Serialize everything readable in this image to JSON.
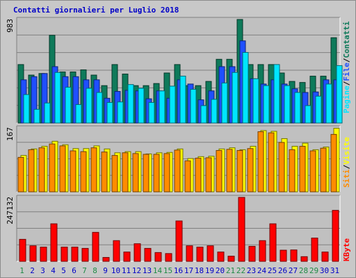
{
  "title": "Contatti giornalieri per Luglio 2018",
  "colors": {
    "background": "#c8c8c8",
    "panel": "#c0c0c0",
    "grid": "#808080",
    "pages": "#00e6ff",
    "files": "#1f4fff",
    "hits": "#0e7a5a",
    "sites": "#ff8c00",
    "visits": "#ffff00",
    "kbytes": "#ff0000",
    "title": "#0000c8",
    "weekend_label": "#1e8c46",
    "weekday_label": "#0000c8"
  },
  "chart_data": [
    {
      "type": "bar",
      "panel": "top",
      "ylabel_max": "983",
      "legend": {
        "pages": "Pagine",
        "sep1": "/",
        "files": "File",
        "sep2": "/",
        "hits": "Contatti"
      },
      "ylim": [
        0,
        983
      ],
      "categories": [
        "1",
        "2",
        "3",
        "4",
        "5",
        "6",
        "7",
        "8",
        "9",
        "10",
        "11",
        "12",
        "13",
        "14",
        "15",
        "16",
        "17",
        "18",
        "19",
        "20",
        "21",
        "22",
        "23",
        "24",
        "25",
        "26",
        "27",
        "28",
        "29",
        "30",
        "31"
      ],
      "weekend_days": [
        "1",
        "7",
        "8",
        "14",
        "15",
        "21",
        "22",
        "28",
        "29"
      ],
      "series": [
        {
          "name": "Contatti",
          "values": [
            555,
            455,
            470,
            833,
            485,
            485,
            505,
            455,
            355,
            555,
            465,
            355,
            355,
            375,
            475,
            555,
            355,
            355,
            395,
            605,
            605,
            983,
            555,
            555,
            555,
            475,
            395,
            385,
            445,
            445,
            810
          ]
        },
        {
          "name": "File",
          "values": [
            410,
            440,
            470,
            535,
            440,
            440,
            410,
            410,
            235,
            300,
            310,
            305,
            230,
            305,
            235,
            410,
            370,
            220,
            305,
            535,
            535,
            780,
            420,
            370,
            410,
            370,
            325,
            290,
            295,
            410,
            410
          ]
        },
        {
          "name": "Pagine",
          "values": [
            270,
            130,
            190,
            480,
            340,
            175,
            330,
            290,
            195,
            200,
            365,
            330,
            195,
            305,
            350,
            445,
            320,
            165,
            225,
            380,
            480,
            670,
            420,
            355,
            555,
            355,
            290,
            165,
            255,
            370,
            545
          ]
        }
      ]
    },
    {
      "type": "bar",
      "panel": "middle",
      "ylabel_max": "167",
      "legend": {
        "sites": "Siti",
        "sep": "/",
        "visits": "Visite"
      },
      "ylim": [
        0,
        167
      ],
      "categories": [
        "1",
        "2",
        "3",
        "4",
        "5",
        "6",
        "7",
        "8",
        "9",
        "10",
        "11",
        "12",
        "13",
        "14",
        "15",
        "16",
        "17",
        "18",
        "19",
        "20",
        "21",
        "22",
        "23",
        "24",
        "25",
        "26",
        "27",
        "28",
        "29",
        "30",
        "31"
      ],
      "series": [
        {
          "name": "Visite",
          "values": [
            95,
            112,
            119,
            132,
            123,
            113,
            113,
            120,
            112,
            102,
            105,
            105,
            99,
            102,
            103,
            112,
            87,
            92,
            93,
            112,
            115,
            110,
            119,
            160,
            158,
            139,
            119,
            127,
            110,
            117,
            166
          ]
        },
        {
          "name": "Siti",
          "values": [
            90,
            110,
            115,
            125,
            120,
            107,
            105,
            115,
            104,
            95,
            102,
            100,
            98,
            98,
            100,
            109,
            81,
            88,
            89,
            108,
            111,
            108,
            113,
            157,
            154,
            129,
            110,
            119,
            107,
            114,
            150
          ]
        }
      ]
    },
    {
      "type": "bar",
      "panel": "bottom",
      "ylabel_max": "247132",
      "legend": {
        "kbytes": "KByte"
      },
      "ylim": [
        0,
        247132
      ],
      "categories": [
        "1",
        "2",
        "3",
        "4",
        "5",
        "6",
        "7",
        "8",
        "9",
        "10",
        "11",
        "12",
        "13",
        "14",
        "15",
        "16",
        "17",
        "18",
        "19",
        "20",
        "21",
        "22",
        "23",
        "24",
        "25",
        "26",
        "27",
        "28",
        "29",
        "30",
        "31"
      ],
      "series": [
        {
          "name": "KByte",
          "values": [
            85000,
            60000,
            55000,
            145000,
            55000,
            55000,
            50000,
            112000,
            15000,
            80000,
            36000,
            68000,
            50000,
            34000,
            30000,
            156000,
            60000,
            55000,
            60000,
            36000,
            20000,
            247132,
            58000,
            80000,
            145000,
            43000,
            44000,
            18000,
            90000,
            36000,
            197000
          ]
        }
      ]
    }
  ]
}
